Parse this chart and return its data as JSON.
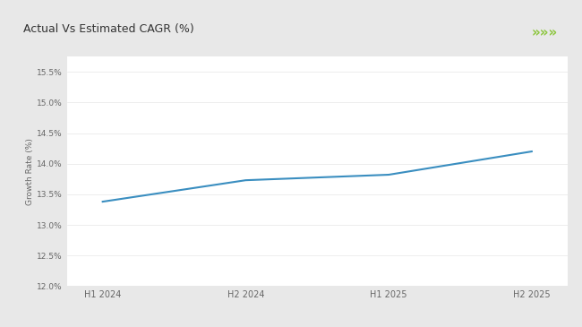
{
  "title": "Actual Vs Estimated CAGR (%)",
  "title_fontsize": 9,
  "x_labels": [
    "H1 2024",
    "H2 2024",
    "H1 2025",
    "H2 2025"
  ],
  "x_values": [
    0,
    1,
    2,
    3
  ],
  "y_values": [
    13.38,
    13.73,
    13.82,
    14.2
  ],
  "line_color": "#3a8ec0",
  "line_width": 1.5,
  "ylabel": "Growth Rate (%)",
  "ylabel_fontsize": 6.5,
  "ylim": [
    12.0,
    15.75
  ],
  "yticks": [
    12.0,
    12.5,
    13.0,
    13.5,
    14.0,
    14.5,
    15.0,
    15.5
  ],
  "ytick_labels": [
    "12.0%",
    "12.5%",
    "13.0%",
    "13.5%",
    "14.0%",
    "14.5%",
    "15.0%",
    "15.5%"
  ],
  "bg_color": "#e8e8e8",
  "plot_bg_color": "#ffffff",
  "header_bg_color": "#ffffff",
  "green_bar_color": "#8dc63f",
  "green_arrow_color": "#8dc63f",
  "tick_fontsize": 6.5,
  "x_tick_fontsize": 7,
  "arrow_text": "»»»",
  "arrow_fontsize": 11
}
